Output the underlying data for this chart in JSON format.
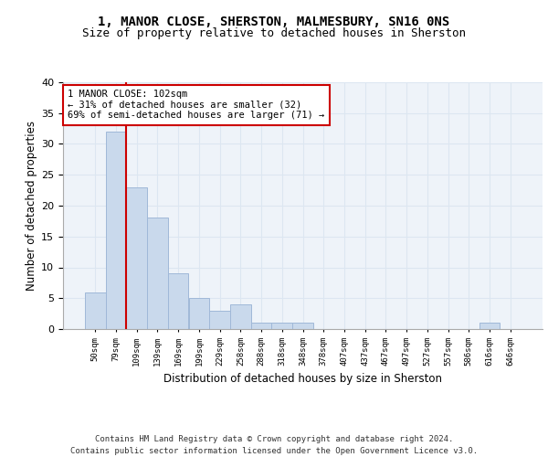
{
  "title1": "1, MANOR CLOSE, SHERSTON, MALMESBURY, SN16 0NS",
  "title2": "Size of property relative to detached houses in Sherston",
  "xlabel": "Distribution of detached houses by size in Sherston",
  "ylabel": "Number of detached properties",
  "bar_labels": [
    "50sqm",
    "79sqm",
    "109sqm",
    "139sqm",
    "169sqm",
    "199sqm",
    "229sqm",
    "258sqm",
    "288sqm",
    "318sqm",
    "348sqm",
    "378sqm",
    "407sqm",
    "437sqm",
    "467sqm",
    "497sqm",
    "527sqm",
    "557sqm",
    "586sqm",
    "616sqm",
    "646sqm"
  ],
  "bar_values": [
    6,
    32,
    23,
    18,
    9,
    5,
    3,
    4,
    1,
    1,
    1,
    0,
    0,
    0,
    0,
    0,
    0,
    0,
    0,
    1,
    0
  ],
  "bar_color": "#c9d9ec",
  "bar_edgecolor": "#a0b8d8",
  "vline_color": "#cc0000",
  "annotation_text": "1 MANOR CLOSE: 102sqm\n← 31% of detached houses are smaller (32)\n69% of semi-detached houses are larger (71) →",
  "annotation_box_edgecolor": "#cc0000",
  "annotation_fontsize": 7.5,
  "grid_color": "#dce6f1",
  "background_color": "#eef3f9",
  "ylim": [
    0,
    40
  ],
  "yticks": [
    0,
    5,
    10,
    15,
    20,
    25,
    30,
    35,
    40
  ],
  "footer": "Contains HM Land Registry data © Crown copyright and database right 2024.\nContains public sector information licensed under the Open Government Licence v3.0.",
  "title1_fontsize": 10,
  "title2_fontsize": 9,
  "xlabel_fontsize": 8.5,
  "ylabel_fontsize": 8.5,
  "footer_fontsize": 6.5
}
